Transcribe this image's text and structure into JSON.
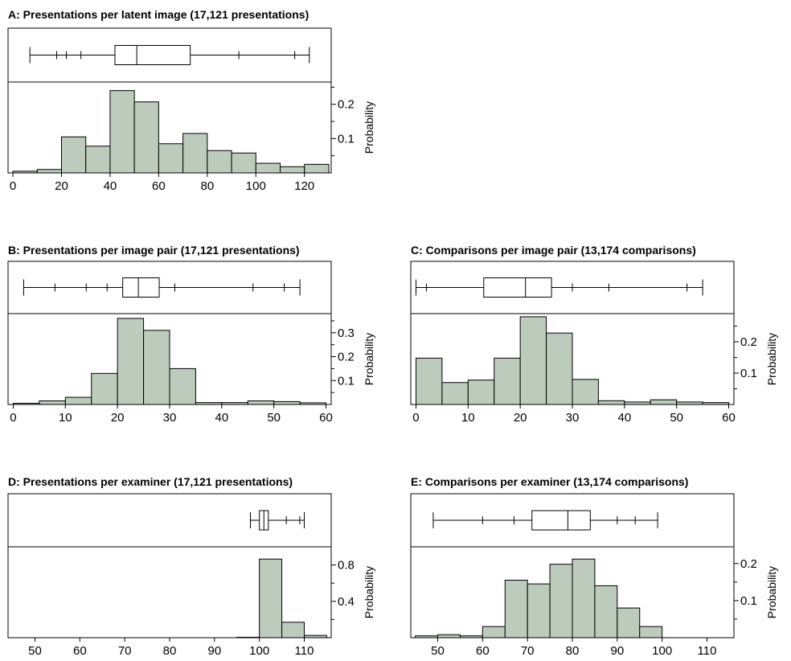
{
  "chart_data": [
    {
      "id": "A",
      "type": "bar",
      "title": "A: Presentations per latent image (17,121 presentations)",
      "ylabel": "Probability",
      "xlim": [
        -2,
        131
      ],
      "ylim": [
        0,
        0.265
      ],
      "xticks": [
        0,
        20,
        40,
        60,
        80,
        100,
        120
      ],
      "yticks": [
        0.1,
        0.2
      ],
      "bin_width": 10,
      "bin_starts": [
        0,
        10,
        20,
        30,
        40,
        50,
        60,
        70,
        80,
        90,
        100,
        110,
        120
      ],
      "values": [
        0.005,
        0.01,
        0.105,
        0.078,
        0.24,
        0.207,
        0.085,
        0.115,
        0.065,
        0.058,
        0.028,
        0.018,
        0.025
      ],
      "boxplot": {
        "whisker_low": 7,
        "q1": 42,
        "median": 51,
        "q3": 73,
        "whisker_high": 122,
        "ticks": [
          18,
          22,
          28,
          93,
          116
        ]
      }
    },
    {
      "id": "B",
      "type": "bar",
      "title": "B: Presentations per image pair (17,121 presentations)",
      "ylabel": "Probability",
      "xlim": [
        -1,
        61
      ],
      "ylim": [
        0,
        0.38
      ],
      "xticks": [
        0,
        10,
        20,
        30,
        40,
        50,
        60
      ],
      "yticks": [
        0.1,
        0.2,
        0.3
      ],
      "bin_width": 5,
      "bin_starts": [
        0,
        5,
        10,
        15,
        20,
        25,
        30,
        35,
        40,
        45,
        50,
        55
      ],
      "values": [
        0.005,
        0.015,
        0.03,
        0.13,
        0.36,
        0.31,
        0.15,
        0.008,
        0.008,
        0.015,
        0.012,
        0.007
      ],
      "boxplot": {
        "whisker_low": 2,
        "q1": 21,
        "median": 24,
        "q3": 28,
        "whisker_high": 55,
        "ticks": [
          8,
          14,
          18,
          31,
          46,
          52
        ]
      }
    },
    {
      "id": "C",
      "type": "bar",
      "title": "C: Comparisons per image pair (13,174 comparisons)",
      "ylabel": "Probability",
      "xlim": [
        -1,
        61
      ],
      "ylim": [
        0,
        0.29
      ],
      "xticks": [
        0,
        10,
        20,
        30,
        40,
        50,
        60
      ],
      "yticks": [
        0.1,
        0.2
      ],
      "bin_width": 5,
      "bin_starts": [
        0,
        5,
        10,
        15,
        20,
        25,
        30,
        35,
        40,
        45,
        50,
        55
      ],
      "values": [
        0.148,
        0.07,
        0.078,
        0.148,
        0.28,
        0.228,
        0.08,
        0.012,
        0.008,
        0.015,
        0.008,
        0.006
      ],
      "boxplot": {
        "whisker_low": 0,
        "q1": 13,
        "median": 21,
        "q3": 26,
        "whisker_high": 55,
        "ticks": [
          2,
          30,
          37,
          52
        ]
      }
    },
    {
      "id": "D",
      "type": "bar",
      "title": "D: Presentations per examiner (17,121 presentations)",
      "ylabel": "Probability",
      "xlim": [
        44,
        116
      ],
      "ylim": [
        0,
        1.0
      ],
      "xticks": [
        50,
        60,
        70,
        80,
        90,
        100,
        110
      ],
      "yticks": [
        0.4,
        0.8
      ],
      "bin_width": 5,
      "bin_starts": [
        95,
        100,
        105,
        110
      ],
      "values": [
        0.005,
        0.865,
        0.17,
        0.025
      ],
      "boxplot": {
        "whisker_low": 98,
        "q1": 100,
        "median": 101,
        "q3": 102,
        "whisker_high": 110,
        "ticks": [
          106,
          109
        ]
      }
    },
    {
      "id": "E",
      "type": "bar",
      "title": "E: Comparisons per examiner (13,174 comparisons)",
      "ylabel": "Probability",
      "xlim": [
        44,
        116
      ],
      "ylim": [
        0,
        0.245
      ],
      "xticks": [
        50,
        60,
        70,
        80,
        90,
        100,
        110
      ],
      "yticks": [
        0.1,
        0.2
      ],
      "bin_width": 5,
      "bin_starts": [
        45,
        50,
        55,
        60,
        65,
        70,
        75,
        80,
        85,
        90,
        95
      ],
      "values": [
        0.005,
        0.008,
        0.005,
        0.03,
        0.155,
        0.145,
        0.198,
        0.212,
        0.14,
        0.08,
        0.03
      ],
      "boxplot": {
        "whisker_low": 49,
        "q1": 71,
        "median": 79,
        "q3": 84,
        "whisker_high": 99,
        "ticks": [
          60,
          67,
          90,
          94
        ]
      }
    }
  ],
  "colors": {
    "bar_fill": "#bccbbc",
    "stroke": "#000000",
    "background": "#ffffff"
  }
}
